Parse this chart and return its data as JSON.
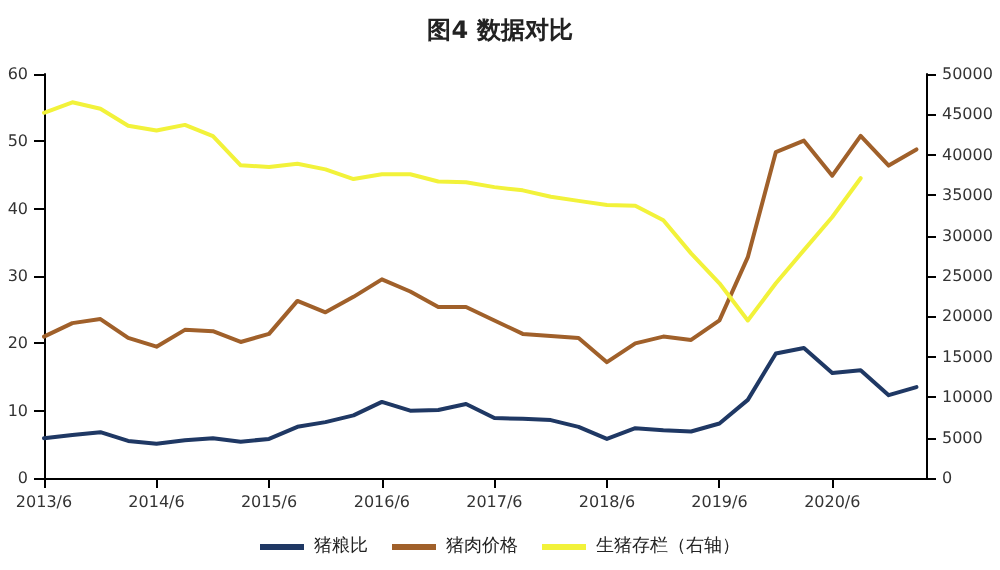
{
  "chart_data": {
    "type": "line",
    "title": "图4 数据对比",
    "x": [
      "2013-06",
      "2013-09",
      "2013-12",
      "2014-03",
      "2014-06",
      "2014-09",
      "2014-12",
      "2015-03",
      "2015-06",
      "2015-09",
      "2015-12",
      "2016-03",
      "2016-06",
      "2016-09",
      "2016-12",
      "2017-03",
      "2017-06",
      "2017-09",
      "2017-12",
      "2018-03",
      "2018-06",
      "2018-09",
      "2018-12",
      "2019-03",
      "2019-06",
      "2019-09",
      "2019-12",
      "2020-03",
      "2020-06",
      "2020-09",
      "2020-12",
      "2021-03"
    ],
    "series": [
      {
        "name": "猪粮比",
        "color": "#1f3864",
        "values": [
          5.9,
          6.4,
          6.8,
          5.5,
          5.1,
          5.6,
          5.9,
          5.4,
          5.8,
          7.6,
          8.3,
          9.3,
          11.3,
          10,
          10.1,
          11,
          8.9,
          8.8,
          8.6,
          7.6,
          5.8,
          7.4,
          7.1,
          6.9,
          8.1,
          11.6,
          18.5,
          19.3,
          15.6,
          16,
          12.3,
          13.5
        ]
      },
      {
        "name": "猪肉价格",
        "color": "#a0602a",
        "values": [
          21,
          23,
          23.6,
          20.8,
          19.5,
          22,
          21.8,
          20.2,
          21.4,
          26.3,
          24.6,
          26.9,
          29.5,
          27.7,
          25.4,
          25.4,
          23.4,
          21.4,
          21.1,
          20.8,
          17.2,
          20,
          21,
          20.5,
          23.4,
          32.8,
          48.4,
          50.1,
          44.9,
          50.8,
          46.4,
          48.8
        ]
      },
      {
        "name": "生猪存栏（右轴）",
        "color": "#f2f23a",
        "axis": "y2",
        "values": [
          45200,
          46500,
          45700,
          43600,
          43000,
          43700,
          42300,
          38700,
          38500,
          38900,
          38200,
          37000,
          37600,
          37600,
          36700,
          36600,
          36000,
          35600,
          34800,
          34300,
          33800,
          33700,
          31900,
          27800,
          24100,
          19500,
          24100,
          28200,
          32300,
          37100,
          null,
          null
        ]
      }
    ],
    "xlim": [
      "2013-06",
      "2021-04"
    ],
    "xticks": [
      {
        "value": "2013-06",
        "label": "2013/6"
      },
      {
        "value": "2014-06",
        "label": "2014/6"
      },
      {
        "value": "2015-06",
        "label": "2015/6"
      },
      {
        "value": "2016-06",
        "label": "2016/6"
      },
      {
        "value": "2017-06",
        "label": "2017/6"
      },
      {
        "value": "2018-06",
        "label": "2018/6"
      },
      {
        "value": "2019-06",
        "label": "2019/6"
      },
      {
        "value": "2020-06",
        "label": "2020/6"
      }
    ],
    "ylim": [
      0,
      60
    ],
    "yticks": [
      0,
      10,
      20,
      30,
      40,
      50,
      60
    ],
    "y2lim": [
      0,
      50000
    ],
    "y2ticks": [
      0,
      5000,
      10000,
      15000,
      20000,
      25000,
      30000,
      35000,
      40000,
      45000,
      50000
    ],
    "grid": false,
    "legend": "bottom",
    "marker": "none",
    "line_style": "solid"
  }
}
